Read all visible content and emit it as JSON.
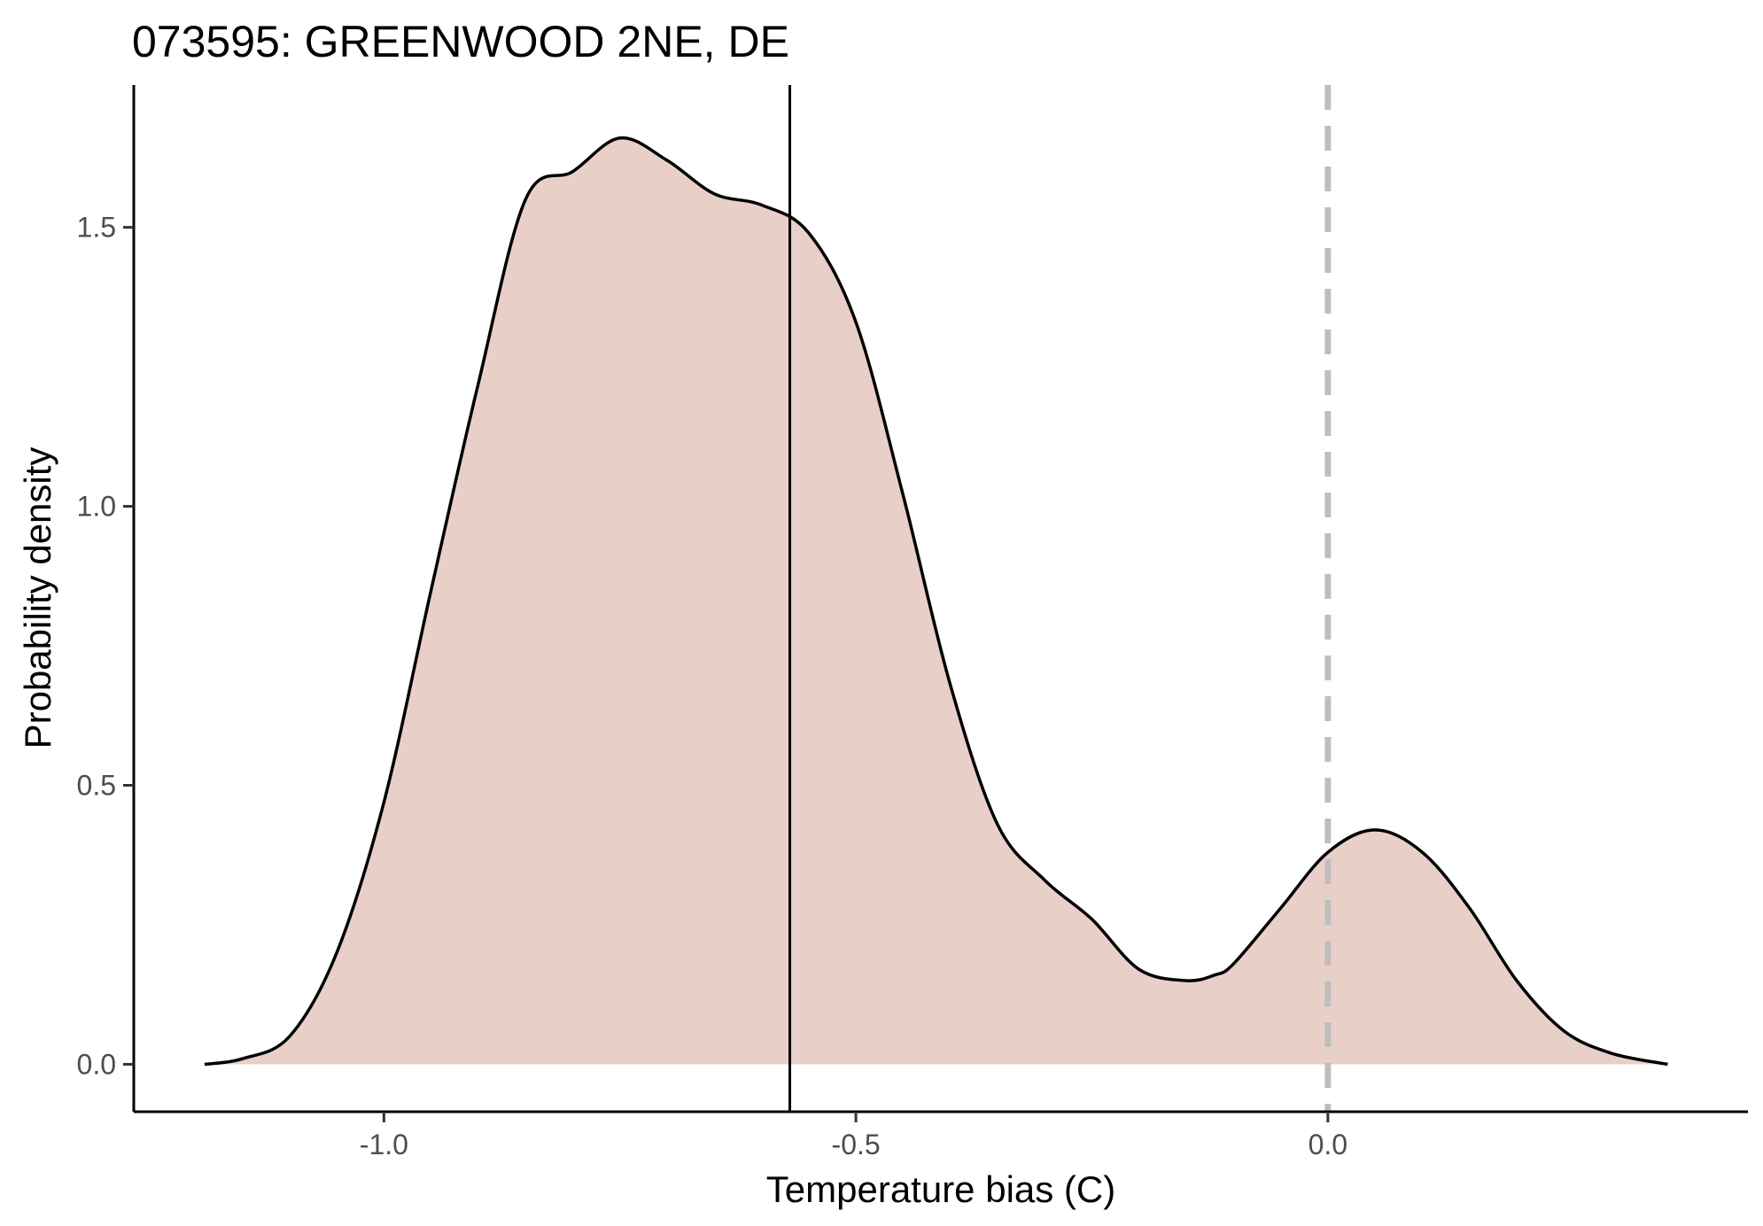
{
  "chart_data": {
    "type": "area",
    "title": "073595: GREENWOOD 2NE, DE",
    "xlabel": "Temperature bias (C)",
    "ylabel": "Probability density",
    "xlim": [
      -1.265,
      0.445
    ],
    "ylim": [
      -0.085,
      1.755
    ],
    "x_ticks": [
      {
        "value": -1.0,
        "label": "-1.0"
      },
      {
        "value": -0.5,
        "label": "-0.5"
      },
      {
        "value": 0.0,
        "label": "0.0"
      }
    ],
    "y_ticks": [
      {
        "value": 0.0,
        "label": "0.0"
      },
      {
        "value": 0.5,
        "label": "0.5"
      },
      {
        "value": 1.0,
        "label": "1.0"
      },
      {
        "value": 1.5,
        "label": "1.5"
      }
    ],
    "grid": false,
    "legend": "none",
    "series": [
      {
        "x": [
          -1.19,
          -1.15,
          -1.1,
          -1.05,
          -1.0,
          -0.95,
          -0.9,
          -0.85,
          -0.8,
          -0.75,
          -0.7,
          -0.65,
          -0.6,
          -0.55,
          -0.5,
          -0.45,
          -0.4,
          -0.35,
          -0.3,
          -0.25,
          -0.2,
          -0.15,
          -0.12,
          -0.1,
          -0.05,
          0.0,
          0.05,
          0.1,
          0.15,
          0.2,
          0.25,
          0.3,
          0.36
        ],
        "y": [
          0.0,
          0.01,
          0.05,
          0.2,
          0.47,
          0.85,
          1.22,
          1.55,
          1.6,
          1.66,
          1.62,
          1.56,
          1.54,
          1.49,
          1.33,
          1.02,
          0.68,
          0.43,
          0.33,
          0.26,
          0.17,
          0.15,
          0.16,
          0.18,
          0.28,
          0.38,
          0.42,
          0.38,
          0.28,
          0.15,
          0.06,
          0.02,
          0.0
        ]
      }
    ],
    "fill_color": "#e8cfc8",
    "line_color": "#000000",
    "vlines": [
      {
        "x": -0.57,
        "style": "solid",
        "color": "#000000"
      },
      {
        "x": 0.0,
        "style": "dashed",
        "color": "#bebebe"
      }
    ]
  }
}
